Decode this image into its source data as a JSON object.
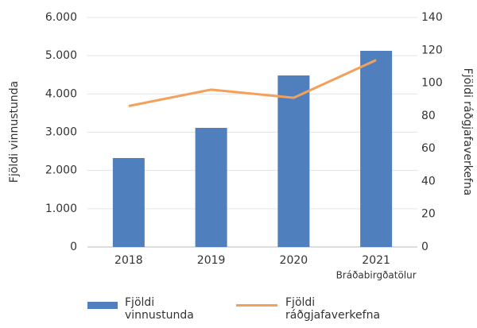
{
  "chart_data": {
    "type": "bar_line",
    "categories": [
      "2018",
      "2019",
      "2020",
      "2021"
    ],
    "annotation": "Bráðabirgðatölur",
    "series": [
      {
        "name": "Fjöldi vinnustunda",
        "type": "bar",
        "color": "#4f7fbd",
        "values": [
          2325,
          3114,
          4484,
          5128
        ]
      },
      {
        "name": "Fjöldi ráðgjafaverkefna",
        "type": "line",
        "axis": "y2",
        "color": "#f5a05a",
        "values": [
          86,
          96,
          91,
          114
        ]
      }
    ],
    "ylabel": "Fjöldi vinnustunda",
    "y2label": "Fjöldi ráðgjafaverkefna",
    "ylim": [
      0,
      6000
    ],
    "yticks": [
      0,
      {
        "value": 1000,
        "label": "1.000"
      },
      {
        "value": 2000,
        "label": "2.000"
      },
      {
        "value": 3000,
        "label": "3.000"
      },
      {
        "value": 4000,
        "label": "4.000"
      },
      {
        "value": 5000,
        "label": "5.000"
      },
      {
        "value": 6000,
        "label": "6.000"
      }
    ],
    "y2lim": [
      0,
      140
    ],
    "y2ticks": [
      0,
      20,
      40,
      60,
      80,
      100,
      120,
      140
    ],
    "grid": true
  }
}
